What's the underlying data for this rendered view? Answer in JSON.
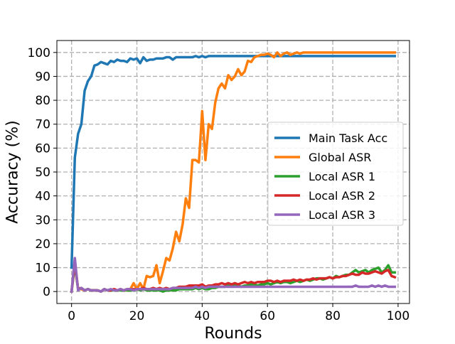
{
  "chart_data": {
    "type": "line",
    "title": "",
    "xlabel": "Rounds",
    "ylabel": "Accuracy (%)",
    "xlim": [
      -4.5,
      103.5
    ],
    "ylim": [
      -5,
      105
    ],
    "xticks": [
      0,
      20,
      40,
      60,
      80,
      100
    ],
    "yticks": [
      0,
      10,
      20,
      30,
      40,
      50,
      60,
      70,
      80,
      90,
      100
    ],
    "xtick_labels": [
      "0",
      "20",
      "40",
      "60",
      "80",
      "100"
    ],
    "ytick_labels": [
      "0",
      "10",
      "20",
      "30",
      "40",
      "50",
      "60",
      "70",
      "80",
      "90",
      "100"
    ],
    "grid": true,
    "legend_position": "center-right",
    "x": [
      0,
      1,
      2,
      3,
      4,
      5,
      6,
      7,
      8,
      9,
      10,
      11,
      12,
      13,
      14,
      15,
      16,
      17,
      18,
      19,
      20,
      21,
      22,
      23,
      24,
      25,
      26,
      27,
      28,
      29,
      30,
      31,
      32,
      33,
      34,
      35,
      36,
      37,
      38,
      39,
      40,
      41,
      42,
      43,
      44,
      45,
      46,
      47,
      48,
      49,
      50,
      51,
      52,
      53,
      54,
      55,
      56,
      57,
      58,
      59,
      60,
      61,
      62,
      63,
      64,
      65,
      66,
      67,
      68,
      69,
      70,
      71,
      72,
      73,
      74,
      75,
      76,
      77,
      78,
      79,
      80,
      81,
      82,
      83,
      84,
      85,
      86,
      87,
      88,
      89,
      90,
      91,
      92,
      93,
      94,
      95,
      96,
      97,
      98,
      99
    ],
    "series": [
      {
        "name": "Main Task Acc",
        "color": "#1f77b4",
        "values": [
          10,
          56,
          66,
          70,
          84,
          88,
          90,
          94.5,
          95,
          96,
          95.5,
          95,
          96.5,
          96,
          97,
          96.5,
          96.5,
          96,
          97.5,
          97,
          97.5,
          95.5,
          98,
          96.5,
          97,
          97,
          97.5,
          97.5,
          97.5,
          98,
          98,
          97,
          98,
          98,
          98,
          98,
          98,
          98,
          98.5,
          98,
          98.5,
          98,
          98.5,
          98.5,
          98.5,
          98.5,
          98.5,
          98.5,
          98.5,
          98.5,
          98.5,
          98.5,
          98.5,
          98.5,
          98.5,
          98.5,
          98.5,
          98.5,
          98.5,
          98.5,
          98.5,
          98.5,
          98.5,
          98.5,
          98.5,
          98.5,
          98.5,
          98.5,
          98.5,
          98.5,
          98.5,
          98.5,
          98.5,
          98.5,
          98.5,
          98.5,
          98.5,
          98.5,
          98.5,
          98.5,
          98.5,
          98.5,
          98.5,
          98.5,
          98.5,
          98.5,
          98.5,
          98.5,
          98.5,
          98.5,
          98.5,
          98.5,
          98.5,
          98.5,
          98.5,
          98.5,
          98.5,
          98.5,
          98.5,
          98.5
        ]
      },
      {
        "name": "Global ASR",
        "color": "#ff7f0e",
        "values": [
          0,
          12,
          1,
          1,
          0.5,
          1,
          0.5,
          0.5,
          0.5,
          0,
          1,
          0.5,
          0.5,
          1,
          0.5,
          1,
          0.5,
          0.5,
          1,
          3.5,
          1,
          3.5,
          1,
          6.5,
          6,
          6.5,
          11,
          3.5,
          8.5,
          14,
          13,
          18,
          25,
          21,
          28,
          39,
          35,
          55,
          55,
          54,
          75.5,
          55,
          70,
          68,
          79,
          85,
          87,
          85,
          90.5,
          88.5,
          90,
          93,
          90.5,
          92,
          96.5,
          96,
          98,
          98.5,
          99,
          99,
          99.5,
          99,
          98,
          100,
          98.5,
          99.5,
          100,
          99,
          99.5,
          100,
          99.5,
          100,
          100,
          100,
          100,
          100,
          100,
          100,
          100,
          100,
          100,
          100,
          100,
          100,
          100,
          100,
          100,
          100,
          100,
          100,
          100,
          100,
          100,
          100,
          100,
          100,
          100,
          100,
          100,
          100
        ]
      },
      {
        "name": "Local ASR 1",
        "color": "#2ca02c",
        "values": [
          0,
          11,
          1,
          1.5,
          0.5,
          1,
          0.5,
          0.5,
          0.5,
          0,
          1,
          0.5,
          0.5,
          0.5,
          0.5,
          0.5,
          0.5,
          0.5,
          0.5,
          0.5,
          1,
          0.5,
          1,
          0.5,
          0.5,
          0.5,
          0.5,
          0.5,
          0,
          0.5,
          0.5,
          0.5,
          0.5,
          1,
          1,
          1,
          1,
          1,
          1.5,
          1,
          1.5,
          1,
          1,
          1.5,
          1.5,
          2,
          2,
          2,
          2.5,
          2,
          2.5,
          2.5,
          2,
          2.5,
          2.5,
          3,
          3,
          2.5,
          3,
          3,
          3.5,
          3,
          3.5,
          4,
          3.5,
          4,
          4,
          3.5,
          4,
          4.5,
          4,
          4.5,
          5,
          4.5,
          5,
          5.5,
          5.5,
          5,
          5.5,
          6,
          5.5,
          6.5,
          6,
          6.5,
          7,
          7,
          8,
          9,
          8,
          8.5,
          9,
          8,
          9,
          9.5,
          10,
          8,
          9,
          11,
          8,
          8
        ]
      },
      {
        "name": "Local ASR 2",
        "color": "#d62728",
        "values": [
          0,
          12,
          1,
          1.5,
          0.5,
          1,
          0.5,
          0.5,
          0.5,
          0,
          1,
          0.5,
          0.5,
          1,
          0.5,
          1,
          0.5,
          1,
          1,
          1,
          1,
          1,
          1.5,
          1,
          1,
          1.5,
          1,
          1.5,
          1,
          1.5,
          1,
          1.5,
          1.5,
          2,
          2,
          2,
          2.5,
          2.5,
          2.5,
          2.5,
          3,
          2,
          2.5,
          2.5,
          3,
          3,
          3.5,
          3,
          3.5,
          3,
          3.5,
          3,
          3.5,
          4,
          3.5,
          4,
          3.5,
          4,
          4,
          4,
          4.5,
          4.5,
          4,
          4.5,
          4,
          4.5,
          4.5,
          4.5,
          5,
          4.5,
          5,
          4.5,
          5,
          5,
          5.5,
          5,
          5.5,
          5.5,
          5.5,
          6,
          5.5,
          6,
          6,
          6.5,
          6.5,
          7,
          7.5,
          7,
          7,
          8,
          7.5,
          7.5,
          8,
          8.5,
          8,
          7.5,
          8.5,
          9,
          6.5,
          6
        ]
      },
      {
        "name": "Local ASR 3",
        "color": "#9467bd",
        "values": [
          0,
          14,
          0.5,
          1.5,
          0.5,
          1,
          0.5,
          0.5,
          0.5,
          0,
          1,
          0.5,
          1,
          0.5,
          0.5,
          1,
          0.5,
          1,
          1,
          0.5,
          1,
          1,
          1,
          1,
          1,
          1,
          1,
          1,
          1,
          1,
          1,
          1.5,
          1.5,
          1.5,
          1.5,
          1.5,
          1.5,
          1.5,
          2,
          1.5,
          2,
          1.5,
          2,
          2,
          2,
          2,
          2,
          2,
          2,
          2,
          2,
          2,
          2,
          2,
          2,
          2,
          2,
          2,
          2,
          2,
          2,
          2,
          2,
          2,
          2,
          2,
          2,
          2,
          2,
          2,
          2,
          2,
          2,
          2,
          2,
          2,
          2,
          2,
          2,
          2,
          2,
          2,
          2,
          2,
          2,
          2,
          2,
          2.5,
          2,
          2,
          2,
          2,
          2.5,
          2,
          2.5,
          2,
          2.5,
          2,
          2,
          2
        ]
      }
    ]
  }
}
